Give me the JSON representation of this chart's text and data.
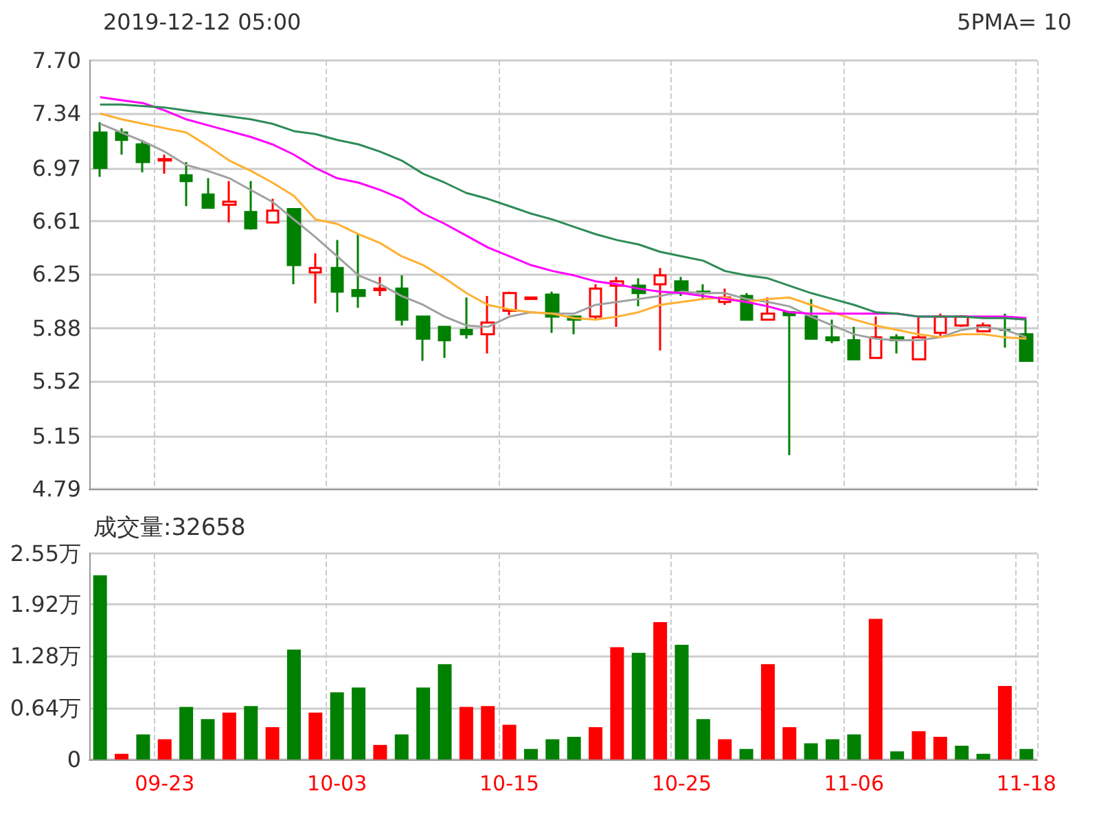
{
  "chart_data": [
    {
      "type": "candlestick",
      "title": "2019-12-12 05:00",
      "annotations": [
        "5PMA= 10"
      ],
      "categories": [
        null,
        null,
        null,
        null,
        null,
        null,
        null,
        null,
        null,
        null,
        null,
        null,
        null,
        null,
        null,
        null,
        null,
        null,
        null,
        null,
        null,
        null,
        null,
        null,
        null,
        null,
        null,
        null,
        null,
        null,
        null,
        null,
        null,
        null,
        null,
        null,
        null,
        null,
        null,
        null,
        null,
        null,
        null,
        null
      ],
      "ohlc": [
        [
          7.21,
          7.28,
          6.91,
          6.97
        ],
        [
          7.21,
          7.24,
          7.06,
          7.16
        ],
        [
          7.13,
          7.16,
          6.94,
          7.01
        ],
        [
          7.02,
          7.06,
          6.93,
          7.03
        ],
        [
          6.92,
          7.01,
          6.71,
          6.88
        ],
        [
          6.79,
          6.9,
          6.7,
          6.7
        ],
        [
          6.72,
          6.88,
          6.6,
          6.74
        ],
        [
          6.67,
          6.88,
          6.55,
          6.56
        ],
        [
          6.6,
          6.76,
          6.6,
          6.68
        ],
        [
          6.69,
          6.69,
          6.18,
          6.31
        ],
        [
          6.26,
          6.39,
          6.05,
          6.29
        ],
        [
          6.29,
          6.48,
          5.99,
          6.13
        ],
        [
          6.14,
          6.52,
          6.02,
          6.1
        ],
        [
          6.14,
          6.23,
          6.1,
          6.15
        ],
        [
          6.15,
          6.24,
          5.9,
          5.94
        ],
        [
          5.96,
          5.96,
          5.66,
          5.81
        ],
        [
          5.89,
          5.89,
          5.68,
          5.8
        ],
        [
          5.87,
          6.09,
          5.81,
          5.84
        ],
        [
          5.84,
          6.1,
          5.71,
          5.92
        ],
        [
          6.0,
          6.13,
          5.97,
          6.12
        ],
        [
          6.08,
          6.09,
          6.08,
          6.09
        ],
        [
          6.11,
          6.13,
          5.85,
          5.96
        ],
        [
          5.96,
          5.96,
          5.84,
          5.94
        ],
        [
          5.96,
          6.18,
          5.94,
          6.15
        ],
        [
          6.17,
          6.23,
          5.89,
          6.2
        ],
        [
          6.17,
          6.22,
          6.03,
          6.12
        ],
        [
          6.18,
          6.29,
          5.73,
          6.24
        ],
        [
          6.2,
          6.23,
          6.1,
          6.12
        ],
        [
          6.13,
          6.18,
          6.08,
          6.12
        ],
        [
          6.06,
          6.15,
          6.04,
          6.09
        ],
        [
          6.1,
          6.12,
          5.94,
          5.94
        ],
        [
          5.94,
          6.09,
          5.94,
          5.98
        ],
        [
          5.99,
          5.99,
          5.02,
          5.97
        ],
        [
          5.96,
          6.08,
          5.81,
          5.81
        ],
        [
          5.82,
          5.94,
          5.78,
          5.8
        ],
        [
          5.8,
          5.89,
          5.67,
          5.67
        ],
        [
          5.68,
          5.96,
          5.68,
          5.82
        ],
        [
          5.82,
          5.84,
          5.71,
          5.8
        ],
        [
          5.67,
          5.96,
          5.67,
          5.82
        ],
        [
          5.85,
          5.98,
          5.83,
          5.96
        ],
        [
          5.9,
          5.97,
          5.89,
          5.96
        ],
        [
          5.86,
          5.92,
          5.86,
          5.9
        ],
        [
          5.87,
          5.98,
          5.75,
          5.87
        ],
        [
          5.84,
          5.94,
          5.66,
          5.66
        ]
      ],
      "series": [
        {
          "type": "line",
          "color": "#a0a0a0",
          "values": [
            7.27,
            7.21,
            7.15,
            7.08,
            6.99,
            6.95,
            6.9,
            6.82,
            6.74,
            6.62,
            6.5,
            6.37,
            6.24,
            6.18,
            6.1,
            6.04,
            5.96,
            5.9,
            5.89,
            5.96,
            5.99,
            5.98,
            5.98,
            6.04,
            6.06,
            6.08,
            6.1,
            6.13,
            6.12,
            6.12,
            6.08,
            6.06,
            6.03,
            5.96,
            5.9,
            5.84,
            5.81,
            5.8,
            5.8,
            5.82,
            5.87,
            5.89,
            5.87,
            5.82
          ]
        },
        {
          "type": "line",
          "color": "#ffb030",
          "values": [
            7.34,
            7.3,
            7.27,
            7.24,
            7.21,
            7.12,
            7.02,
            6.95,
            6.87,
            6.78,
            6.62,
            6.59,
            6.52,
            6.46,
            6.37,
            6.31,
            6.22,
            6.12,
            6.04,
            6.01,
            5.99,
            5.98,
            5.95,
            5.94,
            5.96,
            5.99,
            6.04,
            6.06,
            6.08,
            6.09,
            6.06,
            6.08,
            6.09,
            6.04,
            5.99,
            5.94,
            5.9,
            5.87,
            5.84,
            5.82,
            5.84,
            5.84,
            5.82,
            5.81
          ]
        },
        {
          "type": "line",
          "color": "#ff00ff",
          "values": [
            7.45,
            7.43,
            7.41,
            7.36,
            7.3,
            7.26,
            7.22,
            7.18,
            7.13,
            7.06,
            6.97,
            6.9,
            6.87,
            6.82,
            6.76,
            6.66,
            6.59,
            6.51,
            6.43,
            6.37,
            6.31,
            6.27,
            6.24,
            6.2,
            6.18,
            6.15,
            6.13,
            6.12,
            6.1,
            6.08,
            6.06,
            6.03,
            5.99,
            5.98,
            5.98,
            5.98,
            5.98,
            5.98,
            5.96,
            5.96,
            5.96,
            5.96,
            5.96,
            5.95
          ]
        },
        {
          "type": "line",
          "color": "#2e8b57",
          "values": [
            7.4,
            7.4,
            7.39,
            7.38,
            7.36,
            7.34,
            7.32,
            7.3,
            7.27,
            7.22,
            7.2,
            7.16,
            7.13,
            7.08,
            7.02,
            6.93,
            6.87,
            6.8,
            6.76,
            6.71,
            6.66,
            6.62,
            6.57,
            6.52,
            6.48,
            6.45,
            6.4,
            6.37,
            6.34,
            6.27,
            6.24,
            6.22,
            6.17,
            6.12,
            6.08,
            6.04,
            5.99,
            5.98,
            5.96,
            5.96,
            5.96,
            5.95,
            5.95,
            5.94
          ]
        }
      ],
      "ylim": [
        4.79,
        7.7
      ],
      "yticks": [
        4.79,
        5.15,
        5.52,
        5.88,
        6.25,
        6.61,
        6.97,
        7.34,
        {
          "value": 7.7,
          "label": "7.70"
        }
      ],
      "grid": true,
      "tick_labels": "y"
    },
    {
      "type": "bar",
      "annotations": [
        "成交量:32658"
      ],
      "categories": [
        null,
        null,
        null,
        "09-23",
        null,
        null,
        null,
        null,
        null,
        null,
        null,
        "10-03",
        null,
        null,
        null,
        null,
        null,
        null,
        null,
        "10-15",
        null,
        null,
        null,
        null,
        null,
        null,
        null,
        "10-25",
        null,
        null,
        null,
        null,
        null,
        null,
        null,
        "11-06",
        null,
        null,
        null,
        null,
        null,
        null,
        null,
        "11-18"
      ],
      "values": [
        2.28,
        0.07,
        0.31,
        0.25,
        0.65,
        0.5,
        0.58,
        0.66,
        0.4,
        1.36,
        0.58,
        0.83,
        0.89,
        0.18,
        0.31,
        0.89,
        1.18,
        0.65,
        0.66,
        0.43,
        0.13,
        0.25,
        0.28,
        0.4,
        1.39,
        1.32,
        1.7,
        1.42,
        0.5,
        0.25,
        0.13,
        1.18,
        0.4,
        0.2,
        0.25,
        0.31,
        1.74,
        0.1,
        0.35,
        0.28,
        0.17,
        0.07,
        0.91,
        0.13
      ],
      "colors": [
        "#008000",
        "#ff0000",
        "#008000",
        "#ff0000",
        "#008000",
        "#008000",
        "#ff0000",
        "#008000",
        "#ff0000",
        "#008000",
        "#ff0000",
        "#008000",
        "#008000",
        "#ff0000",
        "#008000",
        "#008000",
        "#008000",
        "#ff0000",
        "#ff0000",
        "#ff0000",
        "#008000",
        "#008000",
        "#008000",
        "#ff0000",
        "#ff0000",
        "#008000",
        "#ff0000",
        "#008000",
        "#008000",
        "#ff0000",
        "#008000",
        "#ff0000",
        "#ff0000",
        "#008000",
        "#008000",
        "#008000",
        "#ff0000",
        "#008000",
        "#ff0000",
        "#ff0000",
        "#008000",
        "#008000",
        "#ff0000",
        "#008000"
      ],
      "ylim": [
        0,
        2.55
      ],
      "yticks": [
        0,
        {
          "value": 0.64,
          "label": "0.64万"
        },
        {
          "value": 1.28,
          "label": "1.28万"
        },
        {
          "value": 1.92,
          "label": "1.92万"
        },
        {
          "value": 2.55,
          "label": "2.55万"
        }
      ],
      "grid": true
    }
  ]
}
